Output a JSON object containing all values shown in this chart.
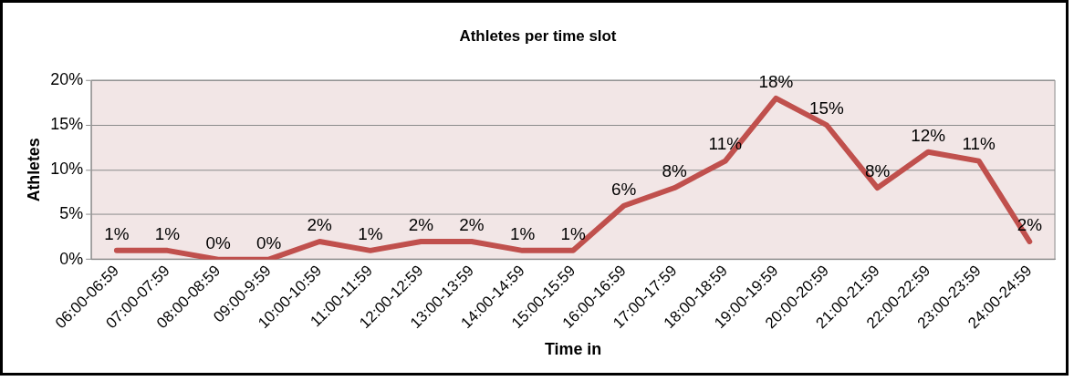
{
  "chart_data": {
    "type": "line",
    "title": "Athletes per time slot",
    "xlabel": "Time in",
    "ylabel": "Athletes",
    "categories": [
      "06:00-06:59",
      "07:00-07:59",
      "08:00-08:59",
      "09:00-9:59",
      "10:00-10:59",
      "11:00-11:59",
      "12:00-12:59",
      "13:00-13:59",
      "14:00-14:59",
      "15:00-15:59",
      "16:00-16:59",
      "17:00-17:59",
      "18:00-18:59",
      "19:00-19:59",
      "20:00-20:59",
      "21:00-21:59",
      "22:00-22:59",
      "23:00-23:59",
      "24:00-24:59"
    ],
    "series": [
      {
        "color": "#c0504d",
        "values": [
          1,
          1,
          0,
          0,
          2,
          1,
          2,
          2,
          1,
          1,
          6,
          8,
          11,
          18,
          15,
          8,
          12,
          11,
          2
        ],
        "value_labels": [
          "1%",
          "1%",
          "0%",
          "0%",
          "2%",
          "1%",
          "2%",
          "2%",
          "1%",
          "1%",
          "6%",
          "8%",
          "11%",
          "18%",
          "15%",
          "8%",
          "12%",
          "11%",
          "2%"
        ]
      }
    ],
    "ylim": [
      0,
      20
    ],
    "yticks": [
      {
        "value": 0,
        "label": "0%"
      },
      {
        "value": 5,
        "label": "5%"
      },
      {
        "value": 10,
        "label": "10%"
      },
      {
        "value": 15,
        "label": "15%"
      },
      {
        "value": 20,
        "label": "20%"
      }
    ],
    "grid": "y",
    "legend": false,
    "marker": "none",
    "line_style": "solid"
  }
}
